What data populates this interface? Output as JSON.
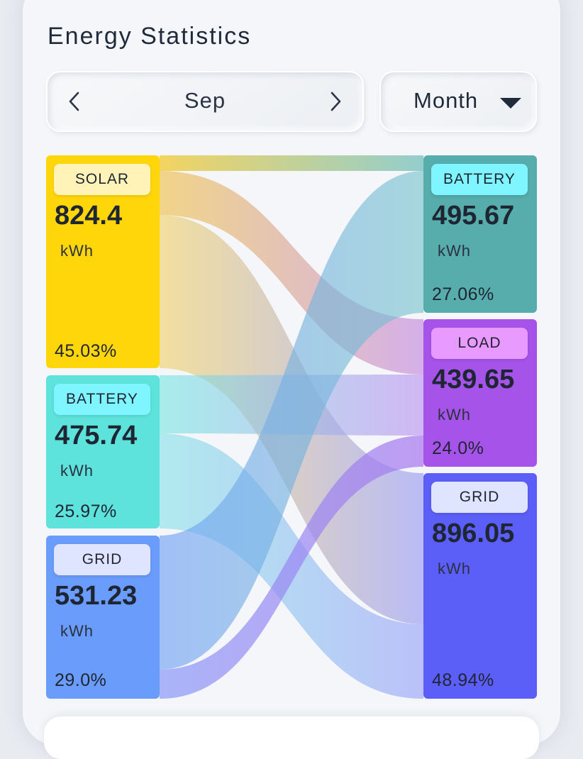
{
  "header": {
    "title": "Energy Statistics"
  },
  "period_selector": {
    "label": "Sep",
    "prev_icon": "chevron-left-icon",
    "next_icon": "chevron-right-icon"
  },
  "mode_selector": {
    "label": "Month",
    "icon": "caret-down-icon"
  },
  "sources": [
    {
      "label": "SOLAR",
      "value": "824.4",
      "unit": "kWh",
      "percent": "45.03%",
      "color": "#ffd60a",
      "tag_color": "#fff3b8"
    },
    {
      "label": "BATTERY",
      "value": "475.74",
      "unit": "kWh",
      "percent": "25.97%",
      "color": "#5de3dc",
      "tag_color": "#7ff6ff"
    },
    {
      "label": "GRID",
      "value": "531.23",
      "unit": "kWh",
      "percent": "29.0%",
      "color": "#6a9cfb",
      "tag_color": "#dfe4ff"
    }
  ],
  "destinations": [
    {
      "label": "BATTERY",
      "value": "495.67",
      "unit": "kWh",
      "percent": "27.06%",
      "color": "#56adac",
      "tag_color": "#7ff6ff"
    },
    {
      "label": "LOAD",
      "value": "439.65",
      "unit": "kWh",
      "percent": "24.0%",
      "color": "#a653ea",
      "tag_color": "#e89aff"
    },
    {
      "label": "GRID",
      "value": "896.05",
      "unit": "kWh",
      "percent": "48.94%",
      "color": "#5c5ef8",
      "tag_color": "#dfe4ff"
    }
  ]
}
